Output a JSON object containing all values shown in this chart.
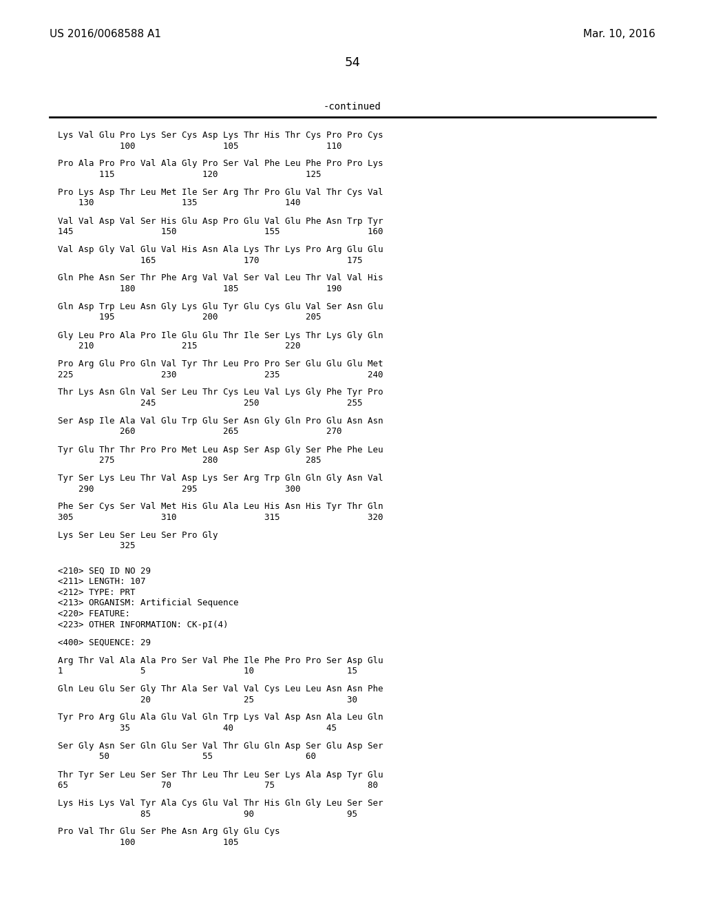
{
  "background_color": "#ffffff",
  "header_left": "US 2016/0068588 A1",
  "header_right": "Mar. 10, 2016",
  "page_number": "54",
  "continued_label": "-continued",
  "body_lines": [
    {
      "type": "seq",
      "text": "Lys Val Glu Pro Lys Ser Cys Asp Lys Thr His Thr Cys Pro Pro Cys"
    },
    {
      "type": "num",
      "text": "            100                 105                 110"
    },
    {
      "type": "blank"
    },
    {
      "type": "seq",
      "text": "Pro Ala Pro Pro Val Ala Gly Pro Ser Val Phe Leu Phe Pro Pro Lys"
    },
    {
      "type": "num",
      "text": "        115                 120                 125"
    },
    {
      "type": "blank"
    },
    {
      "type": "seq",
      "text": "Pro Lys Asp Thr Leu Met Ile Ser Arg Thr Pro Glu Val Thr Cys Val"
    },
    {
      "type": "num",
      "text": "    130                 135                 140"
    },
    {
      "type": "blank"
    },
    {
      "type": "seq",
      "text": "Val Val Asp Val Ser His Glu Asp Pro Glu Val Glu Phe Asn Trp Tyr"
    },
    {
      "type": "num",
      "text": "145                 150                 155                 160"
    },
    {
      "type": "blank"
    },
    {
      "type": "seq",
      "text": "Val Asp Gly Val Glu Val His Asn Ala Lys Thr Lys Pro Arg Glu Glu"
    },
    {
      "type": "num",
      "text": "                165                 170                 175"
    },
    {
      "type": "blank"
    },
    {
      "type": "seq",
      "text": "Gln Phe Asn Ser Thr Phe Arg Val Val Ser Val Leu Thr Val Val His"
    },
    {
      "type": "num",
      "text": "            180                 185                 190"
    },
    {
      "type": "blank"
    },
    {
      "type": "seq",
      "text": "Gln Asp Trp Leu Asn Gly Lys Glu Tyr Glu Cys Glu Val Ser Asn Glu"
    },
    {
      "type": "num",
      "text": "        195                 200                 205"
    },
    {
      "type": "blank"
    },
    {
      "type": "seq",
      "text": "Gly Leu Pro Ala Pro Ile Glu Glu Thr Ile Ser Lys Thr Lys Gly Gln"
    },
    {
      "type": "num",
      "text": "    210                 215                 220"
    },
    {
      "type": "blank"
    },
    {
      "type": "seq",
      "text": "Pro Arg Glu Pro Gln Val Tyr Thr Leu Pro Pro Ser Glu Glu Glu Met"
    },
    {
      "type": "num",
      "text": "225                 230                 235                 240"
    },
    {
      "type": "blank"
    },
    {
      "type": "seq",
      "text": "Thr Lys Asn Gln Val Ser Leu Thr Cys Leu Val Lys Gly Phe Tyr Pro"
    },
    {
      "type": "num",
      "text": "                245                 250                 255"
    },
    {
      "type": "blank"
    },
    {
      "type": "seq",
      "text": "Ser Asp Ile Ala Val Glu Trp Glu Ser Asn Gly Gln Pro Glu Asn Asn"
    },
    {
      "type": "num",
      "text": "            260                 265                 270"
    },
    {
      "type": "blank"
    },
    {
      "type": "seq",
      "text": "Tyr Glu Thr Thr Pro Pro Met Leu Asp Ser Asp Gly Ser Phe Phe Leu"
    },
    {
      "type": "num",
      "text": "        275                 280                 285"
    },
    {
      "type": "blank"
    },
    {
      "type": "seq",
      "text": "Tyr Ser Lys Leu Thr Val Asp Lys Ser Arg Trp Gln Gln Gly Asn Val"
    },
    {
      "type": "num",
      "text": "    290                 295                 300"
    },
    {
      "type": "blank"
    },
    {
      "type": "seq",
      "text": "Phe Ser Cys Ser Val Met His Glu Ala Leu His Asn His Tyr Thr Gln"
    },
    {
      "type": "num",
      "text": "305                 310                 315                 320"
    },
    {
      "type": "blank"
    },
    {
      "type": "seq",
      "text": "Lys Ser Leu Ser Leu Ser Pro Gly"
    },
    {
      "type": "num",
      "text": "            325"
    },
    {
      "type": "blank"
    },
    {
      "type": "blank"
    },
    {
      "type": "meta",
      "text": "<210> SEQ ID NO 29"
    },
    {
      "type": "meta",
      "text": "<211> LENGTH: 107"
    },
    {
      "type": "meta",
      "text": "<212> TYPE: PRT"
    },
    {
      "type": "meta",
      "text": "<213> ORGANISM: Artificial Sequence"
    },
    {
      "type": "meta",
      "text": "<220> FEATURE:"
    },
    {
      "type": "meta",
      "text": "<223> OTHER INFORMATION: CK-pI(4)"
    },
    {
      "type": "blank"
    },
    {
      "type": "meta",
      "text": "<400> SEQUENCE: 29"
    },
    {
      "type": "blank"
    },
    {
      "type": "seq",
      "text": "Arg Thr Val Ala Ala Pro Ser Val Phe Ile Phe Pro Pro Ser Asp Glu"
    },
    {
      "type": "num",
      "text": "1               5                   10                  15"
    },
    {
      "type": "blank"
    },
    {
      "type": "seq",
      "text": "Gln Leu Glu Ser Gly Thr Ala Ser Val Val Cys Leu Leu Asn Asn Phe"
    },
    {
      "type": "num",
      "text": "                20                  25                  30"
    },
    {
      "type": "blank"
    },
    {
      "type": "seq",
      "text": "Tyr Pro Arg Glu Ala Glu Val Gln Trp Lys Val Asp Asn Ala Leu Gln"
    },
    {
      "type": "num",
      "text": "            35                  40                  45"
    },
    {
      "type": "blank"
    },
    {
      "type": "seq",
      "text": "Ser Gly Asn Ser Gln Glu Ser Val Thr Glu Gln Asp Ser Glu Asp Ser"
    },
    {
      "type": "num",
      "text": "        50                  55                  60"
    },
    {
      "type": "blank"
    },
    {
      "type": "seq",
      "text": "Thr Tyr Ser Leu Ser Ser Thr Leu Thr Leu Ser Lys Ala Asp Tyr Glu"
    },
    {
      "type": "num",
      "text": "65                  70                  75                  80"
    },
    {
      "type": "blank"
    },
    {
      "type": "seq",
      "text": "Lys His Lys Val Tyr Ala Cys Glu Val Thr His Gln Gly Leu Ser Ser"
    },
    {
      "type": "num",
      "text": "                85                  90                  95"
    },
    {
      "type": "blank"
    },
    {
      "type": "seq",
      "text": "Pro Val Thr Glu Ser Phe Asn Arg Gly Glu Cys"
    },
    {
      "type": "num",
      "text": "            100                 105"
    }
  ]
}
